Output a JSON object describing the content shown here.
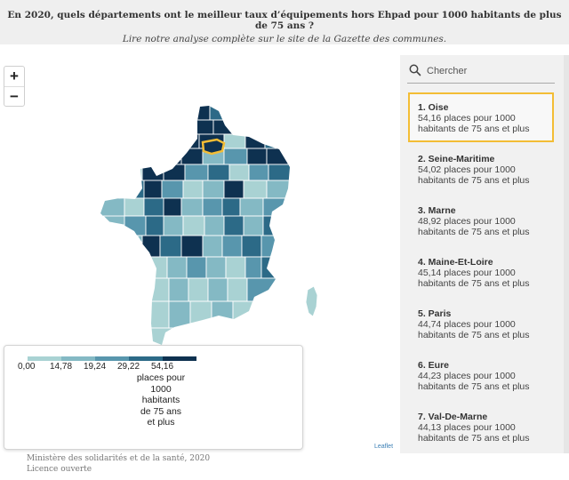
{
  "header": {
    "title": "En 2020, quels départements ont le meilleur taux d’équipements hors Ehpad pour 1000 habitants de plus de 75 ans ?",
    "subtitle": "Lire notre analyse complète sur le site de la Gazette des communes."
  },
  "map": {
    "zoom_in": "+",
    "zoom_out": "−",
    "attribution": "Leaflet",
    "selected_department": "Oise",
    "highlight_color": "#f3bd35",
    "palette": [
      "#a9d2d3",
      "#84b9c4",
      "#5896ad",
      "#2c6a87",
      "#0e3150"
    ]
  },
  "legend": {
    "ticks": [
      "0,00",
      "14,78",
      "19,24",
      "29,22",
      "54,16"
    ],
    "unit": "places pour 1000 habitants de 75 ans et plus",
    "colors": [
      "#a9d2d3",
      "#84b9c4",
      "#5896ad",
      "#2c6a87",
      "#0e3150"
    ]
  },
  "source": {
    "line1": "Ministère des solidarités et de la santé, 2020",
    "line2": "Licence ouverte"
  },
  "sidebar": {
    "search_placeholder": "Chercher",
    "items": [
      {
        "name": "1. Oise",
        "value": "54,16 places pour 1000 habitants de 75 ans et plus"
      },
      {
        "name": "2. Seine-Maritime",
        "value": "54,02 places pour 1000 habitants de 75 ans et plus"
      },
      {
        "name": "3. Marne",
        "value": "48,92 places pour 1000 habitants de 75 ans et plus"
      },
      {
        "name": "4. Maine-Et-Loire",
        "value": "45,14 places pour 1000 habitants de 75 ans et plus"
      },
      {
        "name": "5. Paris",
        "value": "44,74 places pour 1000 habitants de 75 ans et plus"
      },
      {
        "name": "6. Eure",
        "value": "44,23 places pour 1000 habitants de 75 ans et plus"
      },
      {
        "name": "7. Val-De-Marne",
        "value": "44,13 places pour 1000 habitants de 75 ans et plus"
      }
    ]
  }
}
